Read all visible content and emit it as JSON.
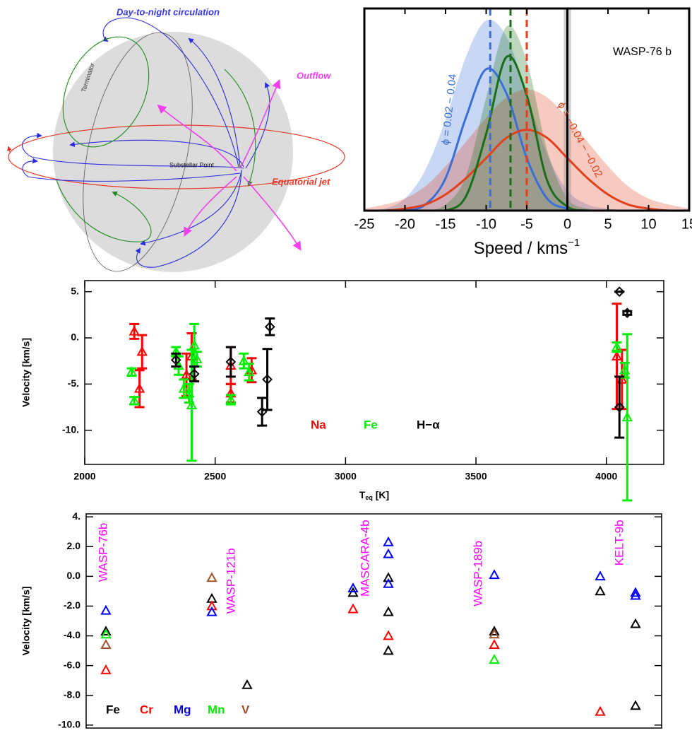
{
  "diagram": {
    "labels": [
      "Day-to-night circulation",
      "Outflow",
      "Terminator",
      "Substellar Point",
      "Equatorial jet"
    ]
  },
  "chart_data": [
    {
      "type": "density",
      "annotation": "WASP-76 b",
      "xlabel": [
        "Speed / kms",
        "−1"
      ],
      "xlim": [
        -25,
        15
      ],
      "xticks": [
        -25,
        -20,
        -15,
        -10,
        -5,
        0,
        5,
        10,
        15
      ],
      "ylim": [
        0,
        1
      ],
      "x": [
        -25,
        -22.5,
        -20,
        -17.5,
        -15,
        -12.5,
        -10,
        -7.5,
        -5,
        -2.5,
        0,
        2.5,
        5,
        7.5,
        10,
        12.5,
        15
      ],
      "series": [
        {
          "name": "ϕ = 0.02 − 0.04",
          "color": "#3a6fd8",
          "values": [
            0,
            0,
            0,
            0.03,
            0.16,
            0.46,
            0.7,
            0.58,
            0.26,
            0.06,
            0.01,
            0,
            0,
            0,
            0,
            0,
            0
          ],
          "band": [
            0,
            0.01,
            0.06,
            0.2,
            0.45,
            0.76,
            0.94,
            0.86,
            0.58,
            0.28,
            0.1,
            0.03,
            0.01,
            0,
            0,
            0,
            0
          ]
        },
        {
          "name": "ϕ = −0.04 − −0.02",
          "color": "#e0401c",
          "values": [
            0,
            0,
            0.01,
            0.03,
            0.08,
            0.16,
            0.26,
            0.36,
            0.4,
            0.36,
            0.26,
            0.16,
            0.08,
            0.03,
            0.01,
            0,
            0
          ],
          "band": [
            0.01,
            0.03,
            0.06,
            0.12,
            0.22,
            0.34,
            0.46,
            0.56,
            0.6,
            0.56,
            0.46,
            0.34,
            0.22,
            0.12,
            0.06,
            0.03,
            0.01
          ]
        },
        {
          "color": "#1a6e1a",
          "values": [
            0,
            0,
            0,
            0,
            0,
            0.07,
            0.38,
            0.76,
            0.57,
            0.15,
            0.02,
            0,
            0,
            0,
            0,
            0,
            0
          ],
          "band": [
            0,
            0,
            0,
            0,
            0.03,
            0.17,
            0.56,
            0.91,
            0.74,
            0.3,
            0.06,
            0.01,
            0,
            0,
            0,
            0,
            0
          ]
        }
      ],
      "vlines": [
        {
          "x": -9.5,
          "color": "#3a6fd8",
          "dashed": true
        },
        {
          "x": -7,
          "color": "#1a6e1a",
          "dashed": true
        },
        {
          "x": -5,
          "color": "#e0401c",
          "dashed": true
        },
        {
          "x": 0,
          "color": "#000000",
          "dashed": false
        }
      ]
    },
    {
      "type": "errorbar",
      "xlabel": [
        "T",
        "eq",
        " [K]"
      ],
      "ylabel": "Velocity [km/s]",
      "xlim": [
        2000,
        4220
      ],
      "xticks": [
        2000,
        2500,
        3000,
        3500,
        4000
      ],
      "ylim": [
        -13.7,
        6.2
      ],
      "yticks": [
        {
          "value": -10,
          "label": "-10."
        },
        {
          "value": -5,
          "label": "-5."
        },
        {
          "value": 0,
          "label": "0."
        },
        {
          "value": 5,
          "label": "5."
        }
      ],
      "legend": "lower center",
      "series": [
        {
          "name": "Na",
          "color": "#ff0000",
          "marker": "triangle",
          "x": [
            2190,
            2210,
            2220,
            2390,
            2410,
            2560,
            2560,
            2640,
            4040,
            4060
          ],
          "values": [
            0.7,
            -5.5,
            -1.5,
            -4.0,
            -2.0,
            -3.0,
            -6.0,
            -3.5,
            -2.0,
            -4.5
          ],
          "errors": [
            0.8,
            2.0,
            1.8,
            2.3,
            2.5,
            2.0,
            1.0,
            1.3,
            5.7,
            3.2
          ]
        },
        {
          "name": "Fe",
          "color": "#00ee00",
          "marker": "triangle",
          "x": [
            2180,
            2190,
            2350,
            2360,
            2380,
            2400,
            2410,
            2420,
            2430,
            2560,
            2610,
            2630,
            4040,
            4070,
            4080
          ],
          "values": [
            -3.7,
            -6.8,
            -1.5,
            -3.0,
            -5.5,
            -6.0,
            -7.3,
            -0.8,
            -2.3,
            -6.7,
            -2.5,
            -3.7,
            -1.0,
            -3.5,
            -8.6
          ],
          "errors": [
            0.4,
            0.4,
            0.5,
            1.0,
            1.0,
            1.0,
            6.0,
            2.3,
            0.8,
            0.5,
            0.8,
            0.9,
            0.5,
            0.8,
            9.0
          ]
        },
        {
          "name": "H−α",
          "color": "#000000",
          "marker": "diamond",
          "x": [
            2350,
            2420,
            2560,
            2680,
            2700,
            2710,
            4050,
            4050,
            4080
          ],
          "values": [
            -2.4,
            -3.9,
            -2.6,
            -8.0,
            -4.5,
            1.2,
            5.0,
            -7.5,
            2.7
          ],
          "errors": [
            0.7,
            0.8,
            1.6,
            1.5,
            3.3,
            0.9,
            0,
            3.3,
            0.2
          ]
        }
      ]
    },
    {
      "type": "scatter",
      "ylabel": "Velocity [km/s]",
      "xlim": [
        0.72,
        8.87
      ],
      "ylim": [
        -10.2,
        4.2
      ],
      "yticks": [
        {
          "value": -10,
          "label": "-10.0"
        },
        {
          "value": -8,
          "label": "-8.0"
        },
        {
          "value": -6,
          "label": "-6.0"
        },
        {
          "value": -4,
          "label": "-4.0"
        },
        {
          "value": -2,
          "label": "-2.0"
        },
        {
          "value": 0,
          "label": "0.0"
        },
        {
          "value": 2,
          "label": "2.0"
        },
        {
          "value": 4,
          "label": "4."
        }
      ],
      "legend": "lower left",
      "annotations": [
        {
          "text": "WASP-76b",
          "x": 0.97,
          "y": 3.6,
          "color": "#ff00ff"
        },
        {
          "text": "WASP-121b",
          "x": 2.78,
          "y": 1.9,
          "color": "#ff00ff"
        },
        {
          "text": "MASCARA-4b",
          "x": 4.68,
          "y": 3.8,
          "color": "#ff00ff"
        },
        {
          "text": "WASP-189b",
          "x": 6.28,
          "y": 2.4,
          "color": "#ff00ff"
        },
        {
          "text": "KELT-9b",
          "x": 8.28,
          "y": 3.8,
          "color": "#ff00ff"
        }
      ],
      "series": [
        {
          "name": "Fe",
          "color": "#000000",
          "marker": "triangle",
          "x": [
            1,
            2.5,
            3,
            4.5,
            5,
            5,
            5,
            6.5,
            8,
            8.5,
            8.5
          ],
          "values": [
            -3.7,
            -1.5,
            -7.3,
            -1.1,
            -0.1,
            -2.4,
            -5.0,
            -3.7,
            -1.0,
            -3.2,
            -8.7
          ]
        },
        {
          "name": "Cr",
          "color": "#ff0000",
          "marker": "triangle",
          "x": [
            1,
            2.5,
            4.5,
            5,
            6.5,
            8
          ],
          "values": [
            -6.3,
            -2.0,
            -2.2,
            -4.0,
            -4.6,
            -9.1
          ]
        },
        {
          "name": "Mg",
          "color": "#0000ff",
          "marker": "triangle",
          "x": [
            1,
            2.5,
            4.5,
            5,
            5,
            5,
            6.5,
            8,
            8.5,
            8.5
          ],
          "values": [
            -2.3,
            -2.4,
            -0.8,
            2.3,
            1.5,
            -0.5,
            0.1,
            0.0,
            -1.1,
            -1.3
          ]
        },
        {
          "name": "Mn",
          "color": "#00ee00",
          "marker": "triangle",
          "x": [
            1,
            6.5
          ],
          "values": [
            -3.9,
            -5.6
          ]
        },
        {
          "name": "V",
          "color": "#a0522d",
          "marker": "triangle",
          "x": [
            1,
            2.5,
            6.5
          ],
          "values": [
            -4.6,
            -0.1,
            -3.9
          ]
        }
      ]
    }
  ]
}
